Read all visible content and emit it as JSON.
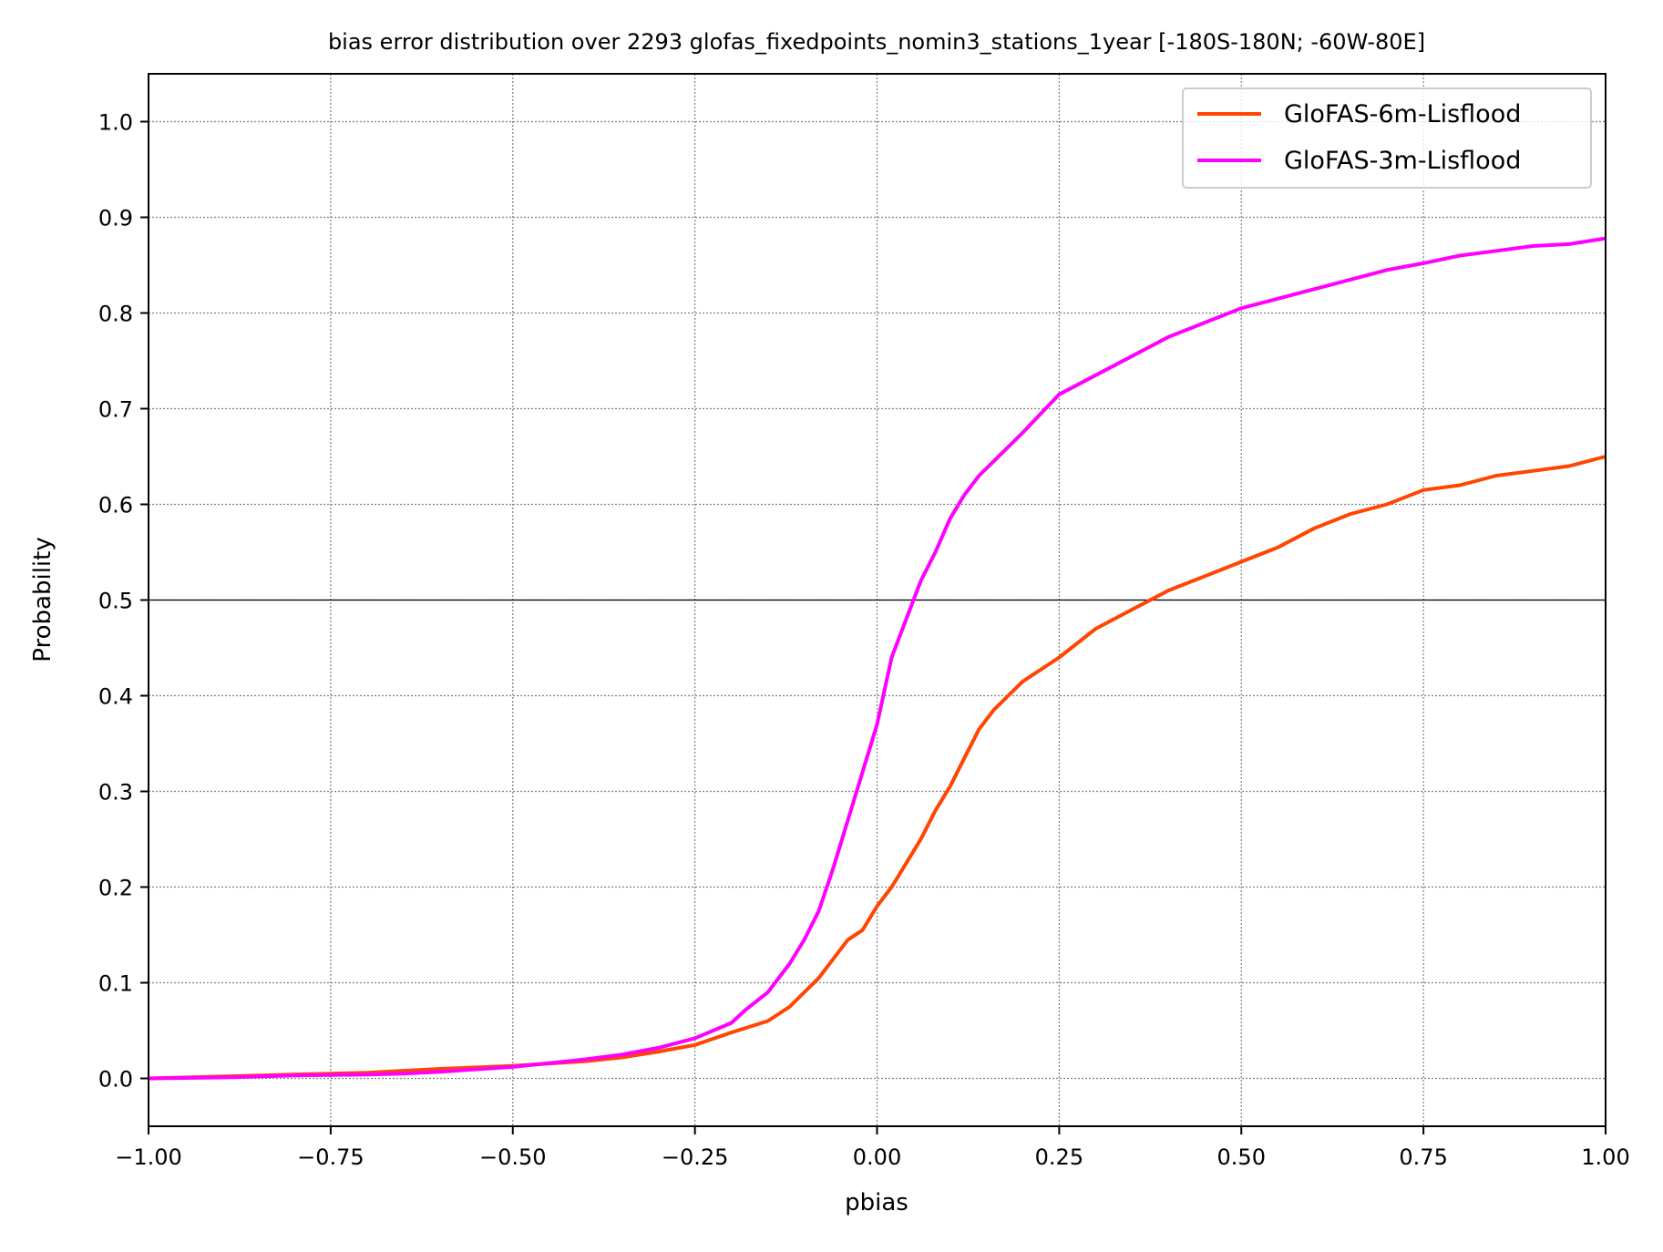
{
  "chart_data": {
    "type": "line",
    "title": "bias error distribution over 2293 glofas_fixedpoints_nomin3_stations_1year [-180S-180N; -60W-80E]",
    "xlabel": "pbias",
    "ylabel": "Probability",
    "xlim": [
      -1.0,
      1.0
    ],
    "ylim": [
      -0.05,
      1.05
    ],
    "xticks": [
      -1.0,
      -0.75,
      -0.5,
      -0.25,
      0.0,
      0.25,
      0.5,
      0.75,
      1.0
    ],
    "xtick_labels": [
      "−1.00",
      "−0.75",
      "−0.50",
      "−0.25",
      "0.00",
      "0.25",
      "0.50",
      "0.75",
      "1.00"
    ],
    "yticks": [
      0.0,
      0.1,
      0.2,
      0.3,
      0.4,
      0.5,
      0.6,
      0.7,
      0.8,
      0.9,
      1.0
    ],
    "ytick_labels": [
      "0.0",
      "0.1",
      "0.2",
      "0.3",
      "0.4",
      "0.5",
      "0.6",
      "0.7",
      "0.8",
      "0.9",
      "1.0"
    ],
    "grid": true,
    "reference_line_y": 0.5,
    "legend_position": "top-right",
    "series": [
      {
        "name": "GloFAS-6m-Lisflood",
        "color": "#ff4500",
        "points": [
          [
            -1.0,
            0.0
          ],
          [
            -0.9,
            0.002
          ],
          [
            -0.8,
            0.004
          ],
          [
            -0.7,
            0.006
          ],
          [
            -0.65,
            0.008
          ],
          [
            -0.6,
            0.01
          ],
          [
            -0.5,
            0.013
          ],
          [
            -0.4,
            0.018
          ],
          [
            -0.35,
            0.022
          ],
          [
            -0.3,
            0.028
          ],
          [
            -0.25,
            0.035
          ],
          [
            -0.2,
            0.048
          ],
          [
            -0.15,
            0.06
          ],
          [
            -0.12,
            0.075
          ],
          [
            -0.1,
            0.09
          ],
          [
            -0.08,
            0.105
          ],
          [
            -0.06,
            0.125
          ],
          [
            -0.04,
            0.145
          ],
          [
            -0.02,
            0.155
          ],
          [
            0.0,
            0.18
          ],
          [
            0.02,
            0.2
          ],
          [
            0.04,
            0.225
          ],
          [
            0.06,
            0.25
          ],
          [
            0.08,
            0.28
          ],
          [
            0.1,
            0.305
          ],
          [
            0.12,
            0.335
          ],
          [
            0.14,
            0.365
          ],
          [
            0.16,
            0.385
          ],
          [
            0.18,
            0.4
          ],
          [
            0.2,
            0.415
          ],
          [
            0.25,
            0.44
          ],
          [
            0.3,
            0.47
          ],
          [
            0.35,
            0.49
          ],
          [
            0.4,
            0.51
          ],
          [
            0.45,
            0.525
          ],
          [
            0.5,
            0.54
          ],
          [
            0.55,
            0.555
          ],
          [
            0.6,
            0.575
          ],
          [
            0.65,
            0.59
          ],
          [
            0.7,
            0.6
          ],
          [
            0.75,
            0.615
          ],
          [
            0.8,
            0.62
          ],
          [
            0.85,
            0.63
          ],
          [
            0.9,
            0.635
          ],
          [
            0.95,
            0.64
          ],
          [
            1.0,
            0.65
          ]
        ]
      },
      {
        "name": "GloFAS-3m-Lisflood",
        "color": "#ff00ff",
        "points": [
          [
            -1.0,
            0.0
          ],
          [
            -0.9,
            0.001
          ],
          [
            -0.8,
            0.003
          ],
          [
            -0.7,
            0.004
          ],
          [
            -0.65,
            0.005
          ],
          [
            -0.6,
            0.007
          ],
          [
            -0.5,
            0.012
          ],
          [
            -0.4,
            0.02
          ],
          [
            -0.35,
            0.025
          ],
          [
            -0.3,
            0.032
          ],
          [
            -0.25,
            0.042
          ],
          [
            -0.2,
            0.058
          ],
          [
            -0.18,
            0.072
          ],
          [
            -0.15,
            0.09
          ],
          [
            -0.12,
            0.12
          ],
          [
            -0.1,
            0.145
          ],
          [
            -0.08,
            0.175
          ],
          [
            -0.06,
            0.22
          ],
          [
            -0.04,
            0.27
          ],
          [
            -0.02,
            0.32
          ],
          [
            0.0,
            0.37
          ],
          [
            0.02,
            0.44
          ],
          [
            0.04,
            0.48
          ],
          [
            0.06,
            0.52
          ],
          [
            0.08,
            0.55
          ],
          [
            0.1,
            0.585
          ],
          [
            0.12,
            0.61
          ],
          [
            0.14,
            0.63
          ],
          [
            0.16,
            0.645
          ],
          [
            0.18,
            0.66
          ],
          [
            0.2,
            0.675
          ],
          [
            0.25,
            0.715
          ],
          [
            0.3,
            0.735
          ],
          [
            0.35,
            0.755
          ],
          [
            0.4,
            0.775
          ],
          [
            0.45,
            0.79
          ],
          [
            0.5,
            0.805
          ],
          [
            0.55,
            0.815
          ],
          [
            0.6,
            0.825
          ],
          [
            0.65,
            0.835
          ],
          [
            0.7,
            0.845
          ],
          [
            0.75,
            0.852
          ],
          [
            0.8,
            0.86
          ],
          [
            0.85,
            0.865
          ],
          [
            0.9,
            0.87
          ],
          [
            0.95,
            0.872
          ],
          [
            1.0,
            0.878
          ]
        ]
      }
    ]
  }
}
